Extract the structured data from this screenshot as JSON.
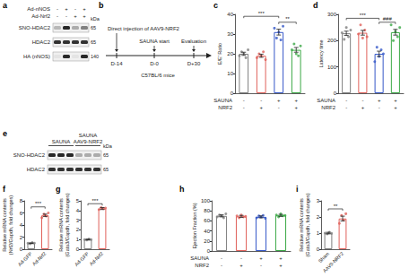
{
  "blots": [
    {
      "panel": "a",
      "lane_header": [
        {
          "label": "Ad-nNOS",
          "values": [
            "-",
            "+",
            "-",
            "+"
          ]
        },
        {
          "label": "Ad-Nrf2",
          "values": [
            "-",
            "-",
            "+",
            "+"
          ]
        }
      ],
      "kda_header": "kDa",
      "rows": [
        {
          "label": "SNO-HDAC2",
          "kda": 65
        },
        {
          "label": "HDAC2",
          "kda": 65
        },
        {
          "label": "HA (nNOS)",
          "kda": 140
        }
      ]
    },
    {
      "panel": "e",
      "groups": [
        {
          "label": "SAUNA",
          "lanes": 3
        },
        {
          "label": "SAUNA\nAAV9-NRF2",
          "lanes": 3
        }
      ],
      "kda_header": "kDa",
      "rows": [
        {
          "label": "SNO-HDAC2",
          "kda": 65
        },
        {
          "label": "HDAC2",
          "kda": 65
        }
      ]
    }
  ],
  "timeline": {
    "panel": "b",
    "events": [
      {
        "day": "D-14",
        "label": "Direct injection of AAV9-NRF2"
      },
      {
        "day": "D-0",
        "label": "SAUNA start"
      },
      {
        "day": "D+30",
        "label": "Evaluation"
      }
    ],
    "subject": "C57BL/6 mice"
  },
  "chart_data": [
    {
      "panel": "c",
      "type": "bar",
      "y_label": "E/E' Ratio",
      "categories": [
        null,
        null,
        null,
        null
      ],
      "conditions": [
        {
          "label": "SAUNA",
          "values": [
            "-",
            "-",
            "+",
            "+"
          ]
        },
        {
          "label": "NRF2",
          "values": [
            "-",
            "+",
            "-",
            "+"
          ]
        }
      ],
      "values": [
        20,
        19,
        31,
        22
      ],
      "errors": [
        0.8,
        0.8,
        1.5,
        1.2
      ],
      "points": [
        [
          19,
          21,
          20,
          18,
          22
        ],
        [
          18,
          20,
          19,
          21,
          17
        ],
        [
          33,
          28,
          31,
          27,
          34
        ],
        [
          22,
          25,
          20,
          19,
          24
        ]
      ],
      "colors": [
        "#7f7f7f",
        "#e0605a",
        "#3557c8",
        "#3aa845"
      ],
      "ylim": [
        0,
        40
      ],
      "yticks": [
        0,
        10,
        20,
        30,
        40
      ],
      "grid": false,
      "significance": [
        {
          "from": 0,
          "to": 2,
          "text": "***",
          "y": 39
        },
        {
          "from": 2,
          "to": 3,
          "text": "**",
          "y": 36
        }
      ]
    },
    {
      "panel": "d",
      "type": "bar",
      "y_label": "Latency time",
      "categories": [
        null,
        null,
        null,
        null
      ],
      "conditions": [
        {
          "label": "SAUNA",
          "values": [
            "-",
            "-",
            "+",
            "+"
          ]
        },
        {
          "label": "NRF2",
          "values": [
            "-",
            "+",
            "-",
            "+"
          ]
        }
      ],
      "values": [
        228,
        230,
        150,
        232
      ],
      "errors": [
        8,
        9,
        10,
        11
      ],
      "points": [
        [
          230,
          205,
          250,
          215,
          240
        ],
        [
          225,
          260,
          210,
          240,
          215
        ],
        [
          120,
          175,
          140,
          165,
          150
        ],
        [
          260,
          200,
          235,
          215,
          250
        ]
      ],
      "colors": [
        "#7f7f7f",
        "#e0605a",
        "#3557c8",
        "#3aa845"
      ],
      "ylim": [
        0,
        300
      ],
      "yticks": [
        0,
        100,
        200,
        300
      ],
      "grid": false,
      "significance": [
        {
          "from": 0,
          "to": 2,
          "text": "***",
          "y": 285
        },
        {
          "from": 2,
          "to": 3,
          "text": "###",
          "y": 270
        }
      ]
    },
    {
      "panel": "f",
      "type": "bar",
      "y_label": "Relative mRNA contents\n(Nrf2/Gapdh, fold changes)",
      "categories": [
        "Ad-GFP",
        "Ad-Nrf2"
      ],
      "values": [
        1,
        5.6
      ],
      "errors": [
        0.05,
        0.2
      ],
      "points": [
        [
          1,
          0.9,
          1.1,
          1
        ],
        [
          5.2,
          5.8,
          5.5,
          6
        ]
      ],
      "colors": [
        "#7f7f7f",
        "#e0605a"
      ],
      "ylim": [
        0,
        8
      ],
      "yticks": [
        0,
        2,
        4,
        6,
        8
      ],
      "grid": false,
      "significance": [
        {
          "from": 0,
          "to": 1,
          "text": "***",
          "y": 7
        }
      ]
    },
    {
      "panel": "g",
      "type": "bar",
      "y_label": "Relative mRNA contents\n(Gata3/Gapdh, fold changes)",
      "categories": [
        "Ad-GFP",
        "Ad-Nrf2"
      ],
      "values": [
        1,
        4.2
      ],
      "errors": [
        0.04,
        0.1
      ],
      "points": [
        [
          1,
          0.95,
          1.05,
          1
        ],
        [
          4.1,
          4.3,
          4.2,
          4.25
        ]
      ],
      "colors": [
        "#7f7f7f",
        "#e0605a"
      ],
      "ylim": [
        0,
        5
      ],
      "yticks": [
        0,
        1,
        2,
        3,
        4,
        5
      ],
      "grid": false,
      "significance": [
        {
          "from": 0,
          "to": 1,
          "text": "***",
          "y": 4.7
        }
      ]
    },
    {
      "panel": "h",
      "type": "bar",
      "y_label": "Ejection Fraction (%)",
      "categories": [
        null,
        null,
        null,
        null
      ],
      "conditions": [
        {
          "label": "SAUNA",
          "values": [
            "-",
            "-",
            "+",
            "+"
          ]
        },
        {
          "label": "NRF2",
          "values": [
            "-",
            "+",
            "-",
            "+"
          ]
        }
      ],
      "values": [
        70,
        69,
        68,
        71
      ],
      "errors": [
        2,
        2,
        2,
        2
      ],
      "points": [
        [
          68,
          72,
          70,
          66,
          74
        ],
        [
          70,
          66,
          72,
          68,
          69
        ],
        [
          66,
          70,
          68,
          71,
          65
        ],
        [
          72,
          68,
          74,
          70,
          71
        ]
      ],
      "colors": [
        "#7f7f7f",
        "#e0605a",
        "#3557c8",
        "#3aa845"
      ],
      "ylim": [
        0,
        100
      ],
      "yticks": [
        0,
        20,
        40,
        60,
        80,
        100
      ],
      "grid": false,
      "significance": []
    },
    {
      "panel": "i",
      "type": "bar",
      "y_label": "Relative mRNA contents\n(Gata3/Gapdh, fold changes)",
      "categories": [
        "Sham",
        "AAV9-NRF2"
      ],
      "values": [
        1,
        1.9
      ],
      "errors": [
        0.05,
        0.15
      ],
      "points": [
        [
          1,
          0.95,
          1.05,
          0.98
        ],
        [
          1.6,
          2.1,
          1.8,
          2.2
        ]
      ],
      "colors": [
        "#7f7f7f",
        "#e0605a"
      ],
      "ylim": [
        0,
        3
      ],
      "yticks": [
        0,
        1,
        2,
        3
      ],
      "grid": false,
      "significance": [
        {
          "from": 0,
          "to": 1,
          "text": "**",
          "y": 2.5
        }
      ]
    }
  ]
}
